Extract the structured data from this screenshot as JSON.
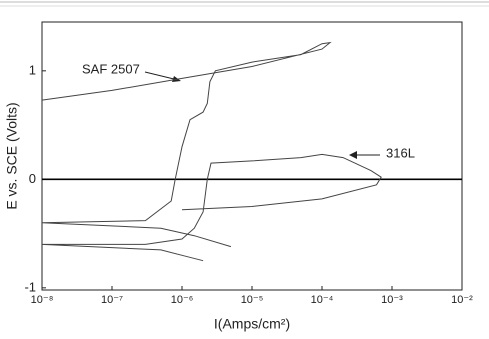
{
  "chart_data": {
    "type": "line",
    "x_label": "I(Amps/cm²)",
    "y_label": "E vs. SCE (Volts)",
    "log_x": true,
    "xlim": [
      1e-08,
      0.01
    ],
    "xticks": [
      {
        "value": 1e-08,
        "label": "10⁻⁸"
      },
      {
        "value": 1e-07,
        "label": "10⁻⁷"
      },
      {
        "value": 1e-06,
        "label": "10⁻⁶"
      },
      {
        "value": 1e-05,
        "label": "10⁻⁵"
      },
      {
        "value": 0.0001,
        "label": "10⁻⁴"
      },
      {
        "value": 0.001,
        "label": "10⁻³"
      },
      {
        "value": 0.01,
        "label": "10⁻²"
      }
    ],
    "ylim": [
      -1.02,
      1.45
    ],
    "yticks": [
      -1,
      0,
      1
    ],
    "hline": 0,
    "series": [
      {
        "name": "SAF 2507",
        "color": "#444444",
        "x": [
          5e-06,
          1.5e-06,
          5e-07,
          1e-08,
          3e-07,
          7e-07,
          8e-07,
          1e-06,
          1.3e-06,
          2e-06,
          2.3e-06,
          2.5e-06,
          3e-06,
          1e-05,
          5e-05,
          0.0001,
          0.00013,
          0.0001,
          1e-05,
          1e-06,
          1e-07,
          1e-08
        ],
        "values": [
          -0.62,
          -0.52,
          -0.45,
          -0.4,
          -0.38,
          -0.2,
          0,
          0.3,
          0.55,
          0.62,
          0.7,
          0.9,
          1.0,
          1.08,
          1.15,
          1.25,
          1.26,
          1.2,
          1.04,
          0.93,
          0.82,
          0.73
        ]
      },
      {
        "name": "316L",
        "color": "#444444",
        "x": [
          2e-06,
          1e-06,
          5e-07,
          1e-08,
          3e-07,
          1e-06,
          1.5e-06,
          2e-06,
          2.3e-06,
          2.6e-06,
          1e-05,
          5e-05,
          0.0001,
          0.0002,
          0.0005,
          0.0007,
          0.0006,
          0.0001,
          1e-05,
          1e-06
        ],
        "values": [
          -0.75,
          -0.7,
          -0.65,
          -0.6,
          -0.6,
          -0.55,
          -0.45,
          -0.3,
          0,
          0.15,
          0.17,
          0.2,
          0.23,
          0.2,
          0.08,
          0.02,
          -0.05,
          -0.18,
          -0.25,
          -0.28
        ]
      }
    ]
  }
}
